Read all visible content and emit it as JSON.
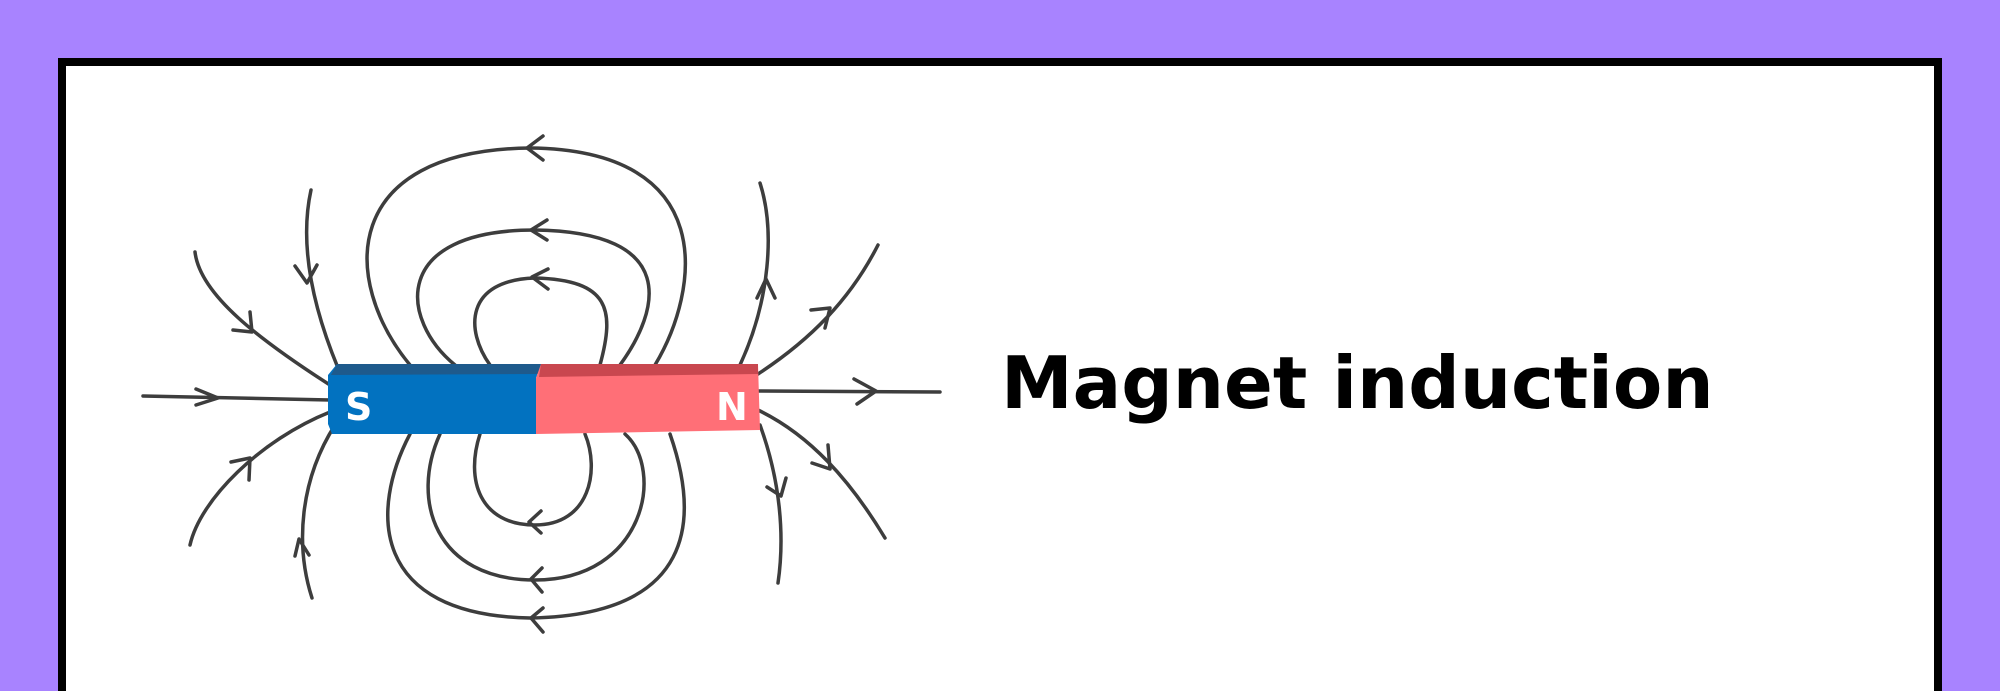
{
  "title": "Magnet induction",
  "magnet": {
    "south_label": "S",
    "north_label": "N",
    "south_color": "#0272c0",
    "north_color": "#ff6f77"
  },
  "colors": {
    "background": "#a883ff",
    "card": "#ffffff",
    "border": "#000000",
    "field_lines": "#3d3d3d"
  }
}
